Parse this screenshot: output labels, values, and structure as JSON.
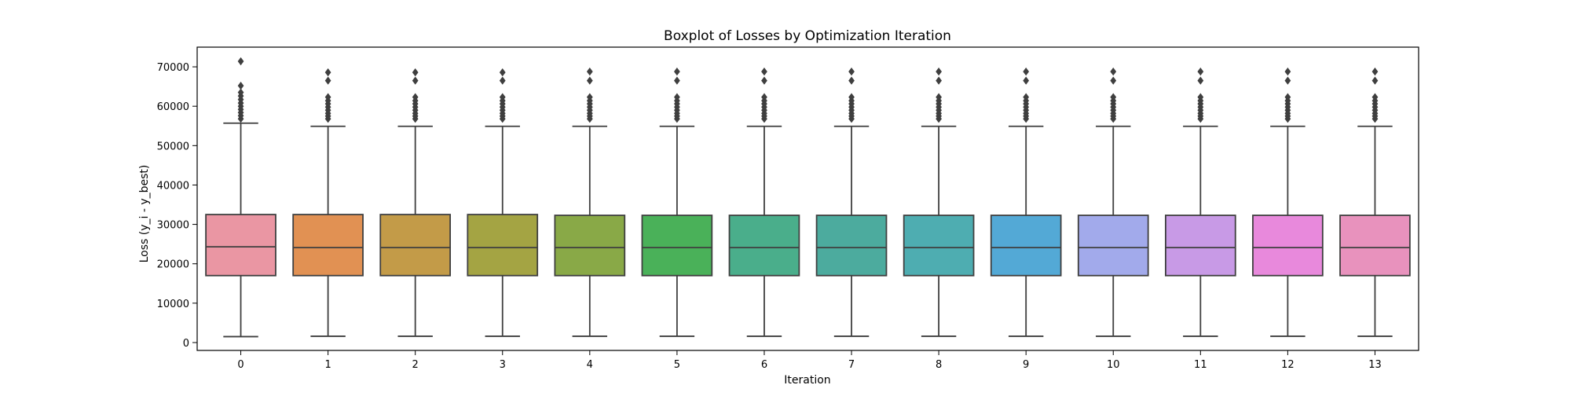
{
  "chart_data": {
    "type": "boxplot",
    "title": "Boxplot of Losses by Optimization Iteration",
    "xlabel": "Iteration",
    "ylabel": "Loss (y_i - y_best)",
    "ylim": [
      -2000,
      75000
    ],
    "yticks": [
      0,
      10000,
      20000,
      30000,
      40000,
      50000,
      60000,
      70000
    ],
    "ytick_labels": [
      "0",
      "10000",
      "20000",
      "30000",
      "40000",
      "50000",
      "60000",
      "70000"
    ],
    "grid": false,
    "legend": "none",
    "categories": [
      "0",
      "1",
      "2",
      "3",
      "4",
      "5",
      "6",
      "7",
      "8",
      "9",
      "10",
      "11",
      "12",
      "13"
    ],
    "boxes": [
      {
        "whislo": 1500,
        "q1": 17000,
        "med": 24300,
        "q3": 32500,
        "whishi": 55700,
        "fliers": [
          56800,
          57600,
          58400,
          59200,
          60000,
          60800,
          61700,
          62600,
          63500,
          65200,
          71400
        ],
        "color": "#ea96a3"
      },
      {
        "whislo": 1600,
        "q1": 17000,
        "med": 24100,
        "q3": 32500,
        "whishi": 54900,
        "fliers": [
          56800,
          57500,
          58200,
          59000,
          59800,
          60600,
          61400,
          62300,
          66500,
          68600
        ],
        "color": "#e19153"
      },
      {
        "whislo": 1600,
        "q1": 17000,
        "med": 24100,
        "q3": 32500,
        "whishi": 54900,
        "fliers": [
          56800,
          57500,
          58200,
          59000,
          59800,
          60600,
          61400,
          62300,
          66500,
          68600
        ],
        "color": "#c39b48"
      },
      {
        "whislo": 1600,
        "q1": 17000,
        "med": 24100,
        "q3": 32500,
        "whishi": 54900,
        "fliers": [
          56800,
          57500,
          58200,
          59000,
          59800,
          60600,
          61400,
          62300,
          66500,
          68600
        ],
        "color": "#a4a443"
      },
      {
        "whislo": 1600,
        "q1": 17000,
        "med": 24100,
        "q3": 32300,
        "whishi": 54900,
        "fliers": [
          56800,
          57500,
          58200,
          59000,
          59800,
          60600,
          61400,
          62300,
          66500,
          68800
        ],
        "color": "#89a947"
      },
      {
        "whislo": 1600,
        "q1": 17000,
        "med": 24100,
        "q3": 32300,
        "whishi": 54900,
        "fliers": [
          56800,
          57500,
          58200,
          59000,
          59800,
          60600,
          61400,
          62300,
          66500,
          68800
        ],
        "color": "#4ab159"
      },
      {
        "whislo": 1600,
        "q1": 17000,
        "med": 24100,
        "q3": 32300,
        "whishi": 54900,
        "fliers": [
          56800,
          57500,
          58200,
          59000,
          59800,
          60600,
          61400,
          62300,
          66500,
          68800
        ],
        "color": "#4aae8b"
      },
      {
        "whislo": 1600,
        "q1": 17000,
        "med": 24100,
        "q3": 32300,
        "whishi": 54900,
        "fliers": [
          56800,
          57500,
          58200,
          59000,
          59800,
          60600,
          61400,
          62300,
          66500,
          68800
        ],
        "color": "#4cab9e"
      },
      {
        "whislo": 1600,
        "q1": 17000,
        "med": 24100,
        "q3": 32300,
        "whishi": 54900,
        "fliers": [
          56800,
          57500,
          58200,
          59000,
          59800,
          60600,
          61400,
          62300,
          66500,
          68800
        ],
        "color": "#4eadb1"
      },
      {
        "whislo": 1600,
        "q1": 17000,
        "med": 24100,
        "q3": 32300,
        "whishi": 54900,
        "fliers": [
          56800,
          57500,
          58200,
          59000,
          59800,
          60600,
          61400,
          62300,
          66500,
          68800
        ],
        "color": "#53a9d6"
      },
      {
        "whislo": 1600,
        "q1": 17000,
        "med": 24100,
        "q3": 32300,
        "whishi": 54900,
        "fliers": [
          56800,
          57500,
          58200,
          59000,
          59800,
          60600,
          61400,
          62300,
          66500,
          68800
        ],
        "color": "#a2aaeb"
      },
      {
        "whislo": 1600,
        "q1": 17000,
        "med": 24100,
        "q3": 32300,
        "whishi": 54900,
        "fliers": [
          56800,
          57500,
          58200,
          59000,
          59800,
          60600,
          61400,
          62300,
          66500,
          68800
        ],
        "color": "#c89ae6"
      },
      {
        "whislo": 1600,
        "q1": 17000,
        "med": 24100,
        "q3": 32300,
        "whishi": 54900,
        "fliers": [
          56800,
          57500,
          58200,
          59000,
          59800,
          60600,
          61400,
          62300,
          66500,
          68800
        ],
        "color": "#e889dc"
      },
      {
        "whislo": 1600,
        "q1": 17000,
        "med": 24100,
        "q3": 32300,
        "whishi": 54900,
        "fliers": [
          56800,
          57500,
          58200,
          59000,
          59800,
          60600,
          61400,
          62300,
          66500,
          68800
        ],
        "color": "#e892bd"
      }
    ]
  }
}
